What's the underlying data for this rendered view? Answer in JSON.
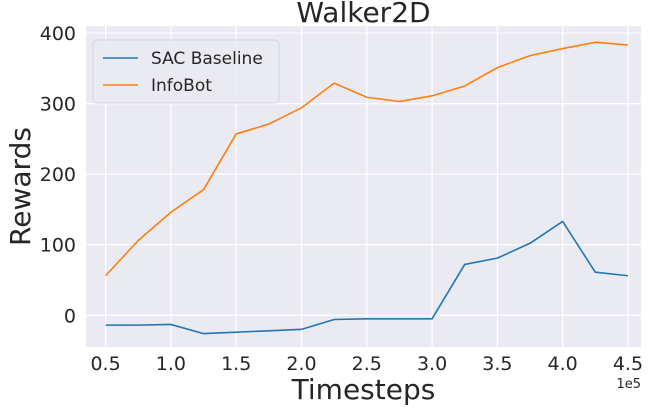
{
  "chart_data": {
    "type": "line",
    "title": "Walker2D",
    "xlabel": "Timesteps",
    "ylabel": "Rewards",
    "x_offset_label": "1e5",
    "xlim": [
      0.35,
      4.6
    ],
    "ylim": [
      -45,
      410
    ],
    "xticks": [
      0.5,
      1.0,
      1.5,
      2.0,
      2.5,
      3.0,
      3.5,
      4.0,
      4.5
    ],
    "xtick_labels": [
      "0.5",
      "1.0",
      "1.5",
      "2.0",
      "2.5",
      "3.0",
      "3.5",
      "4.0",
      "4.5"
    ],
    "yticks": [
      0,
      100,
      200,
      300,
      400
    ],
    "ytick_labels": [
      "0",
      "100",
      "200",
      "300",
      "400"
    ],
    "grid": true,
    "legend_position": "top-left",
    "series": [
      {
        "name": "SAC Baseline",
        "color": "#1f77b4",
        "x": [
          0.5,
          0.75,
          1.0,
          1.25,
          1.5,
          1.75,
          2.0,
          2.25,
          2.5,
          2.75,
          3.0,
          3.25,
          3.5,
          3.75,
          4.0,
          4.25,
          4.5
        ],
        "y": [
          -14,
          -14,
          -13,
          -26,
          -24,
          -22,
          -20,
          -6,
          -5,
          -5,
          -5,
          72,
          81,
          102,
          133,
          61,
          56
        ]
      },
      {
        "name": "InfoBot",
        "color": "#ff7f0e",
        "x": [
          0.5,
          0.75,
          1.0,
          1.25,
          1.5,
          1.75,
          2.0,
          2.25,
          2.5,
          2.75,
          3.0,
          3.25,
          3.5,
          3.75,
          4.0,
          4.25,
          4.5
        ],
        "y": [
          56,
          106,
          146,
          178,
          257,
          271,
          294,
          329,
          309,
          303,
          311,
          325,
          351,
          368,
          378,
          387,
          383
        ]
      }
    ]
  }
}
